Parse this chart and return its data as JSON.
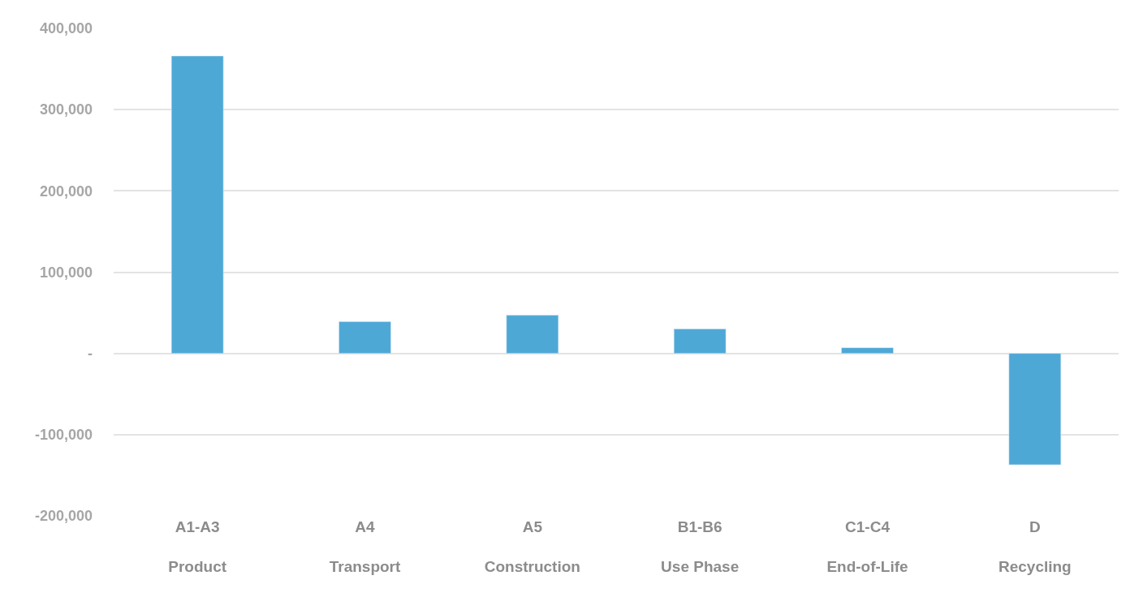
{
  "chart_data": {
    "type": "bar",
    "categories": [
      "A1-A3\nProduct",
      "A4\nTransport",
      "A5\nConstruction",
      "B1-B6\nUse Phase",
      "C1-C4\nEnd-of-Life",
      "D\nRecycling"
    ],
    "values": [
      366000,
      39000,
      47000,
      30000,
      7000,
      -137000
    ],
    "color": "#4ea8d6",
    "ylim": [
      -200000,
      400000
    ],
    "yticks": [
      {
        "value": -200000,
        "label": "-200,000"
      },
      {
        "value": -100000,
        "label": "-100,000"
      },
      {
        "value": 0,
        "label": "-"
      },
      {
        "value": 100000,
        "label": "100,000"
      },
      {
        "value": 200000,
        "label": "200,000"
      },
      {
        "value": 300000,
        "label": "300,000"
      },
      {
        "value": 400000,
        "label": "400,000"
      }
    ],
    "grid": "y"
  }
}
